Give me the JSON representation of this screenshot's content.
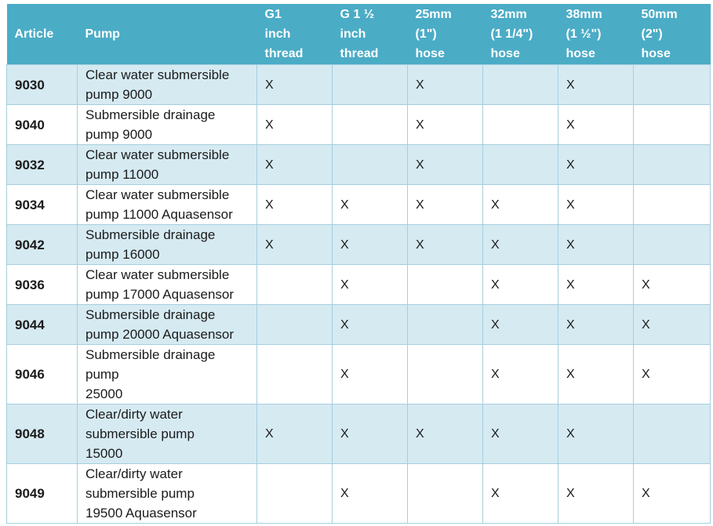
{
  "title": "Pump thread and hose compatibility table",
  "colors": {
    "header_bg": "#4BACC6",
    "header_text": "#FFFFFF",
    "band_bg": "#D6EAF2",
    "row_bg": "#FFFFFF",
    "grid": "#A5CFDE",
    "text": "#1B1B1B"
  },
  "table": {
    "mark": "X",
    "columns": [
      {
        "id": "article",
        "label": "Article"
      },
      {
        "id": "pump",
        "label": "Pump"
      },
      {
        "id": "g1_inch_thread",
        "label": "G1\ninch\nthread"
      },
      {
        "id": "g1_5_inch_thread",
        "label": "G 1 ½\ninch\nthread"
      },
      {
        "id": "hose_25mm",
        "label": "25mm\n(1\")\nhose"
      },
      {
        "id": "hose_32mm",
        "label": "32mm\n(1 1/4\")\nhose"
      },
      {
        "id": "hose_38mm",
        "label": "38mm\n(1 ½\")\nhose"
      },
      {
        "id": "hose_50mm",
        "label": "50mm\n(2\")\nhose"
      }
    ],
    "rows": [
      {
        "article": "9030",
        "pump": "Clear water submersible\npump 9000",
        "g1_inch_thread": "X",
        "g1_5_inch_thread": "",
        "hose_25mm": "X",
        "hose_32mm": "",
        "hose_38mm": "X",
        "hose_50mm": ""
      },
      {
        "article": "9040",
        "pump": "Submersible drainage\npump 9000",
        "g1_inch_thread": "X",
        "g1_5_inch_thread": "",
        "hose_25mm": "X",
        "hose_32mm": "",
        "hose_38mm": "X",
        "hose_50mm": ""
      },
      {
        "article": "9032",
        "pump": "Clear water submersible\npump 11000",
        "g1_inch_thread": "X",
        "g1_5_inch_thread": "",
        "hose_25mm": "X",
        "hose_32mm": "",
        "hose_38mm": "X",
        "hose_50mm": ""
      },
      {
        "article": "9034",
        "pump": "Clear water submersible\npump 11000 Aquasensor",
        "g1_inch_thread": "X",
        "g1_5_inch_thread": "X",
        "hose_25mm": "X",
        "hose_32mm": "X",
        "hose_38mm": "X",
        "hose_50mm": ""
      },
      {
        "article": "9042",
        "pump": "Submersible drainage\npump 16000",
        "g1_inch_thread": "X",
        "g1_5_inch_thread": "X",
        "hose_25mm": "X",
        "hose_32mm": "X",
        "hose_38mm": "X",
        "hose_50mm": ""
      },
      {
        "article": "9036",
        "pump": "Clear water submersible\npump 17000 Aquasensor",
        "g1_inch_thread": "",
        "g1_5_inch_thread": "X",
        "hose_25mm": "",
        "hose_32mm": "X",
        "hose_38mm": "X",
        "hose_50mm": "X"
      },
      {
        "article": "9044",
        "pump": "Submersible drainage\npump 20000 Aquasensor",
        "g1_inch_thread": "",
        "g1_5_inch_thread": "X",
        "hose_25mm": "",
        "hose_32mm": "X",
        "hose_38mm": "X",
        "hose_50mm": "X"
      },
      {
        "article": "9046",
        "pump": "Submersible drainage\npump\n25000",
        "g1_inch_thread": "",
        "g1_5_inch_thread": "X",
        "hose_25mm": "",
        "hose_32mm": "X",
        "hose_38mm": "X",
        "hose_50mm": "X"
      },
      {
        "article": "9048",
        "pump": "Clear/dirty water\nsubmersible pump\n15000",
        "g1_inch_thread": "X",
        "g1_5_inch_thread": "X",
        "hose_25mm": "X",
        "hose_32mm": "X",
        "hose_38mm": "X",
        "hose_50mm": ""
      },
      {
        "article": "9049",
        "pump": "Clear/dirty water\nsubmersible pump\n19500 Aquasensor",
        "g1_inch_thread": "",
        "g1_5_inch_thread": "X",
        "hose_25mm": "",
        "hose_32mm": "X",
        "hose_38mm": "X",
        "hose_50mm": "X"
      }
    ]
  }
}
